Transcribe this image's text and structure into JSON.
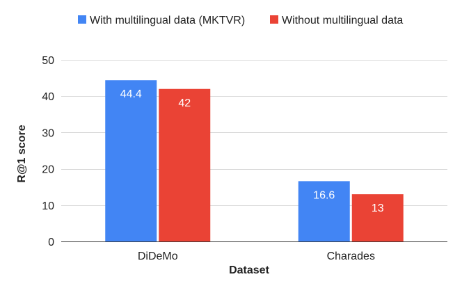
{
  "chart_data": {
    "type": "bar",
    "categories": [
      "DiDeMo",
      "Charades"
    ],
    "series": [
      {
        "name": "With multilingual data (MKTVR)",
        "values": [
          44.4,
          16.6
        ],
        "labels": [
          "44.4",
          "16.6"
        ],
        "color": "#4285f4"
      },
      {
        "name": "Without multilingual data",
        "values": [
          42,
          13
        ],
        "labels": [
          "42",
          "13"
        ],
        "color": "#ea4335"
      }
    ],
    "xlabel": "Dataset",
    "ylabel": "R@1 score",
    "ylim": [
      0,
      50
    ],
    "yticks": [
      0,
      10,
      20,
      30,
      40,
      50
    ],
    "grid": true,
    "legend": "top"
  }
}
